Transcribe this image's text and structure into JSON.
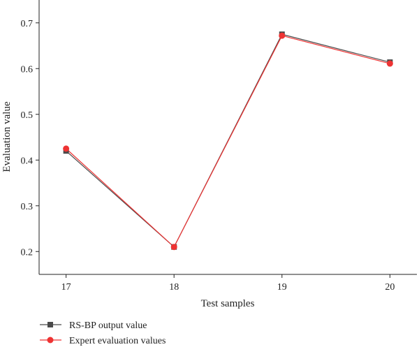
{
  "chart_data": {
    "type": "line",
    "title": "",
    "xlabel": "Test samples",
    "ylabel": "Evaluation value",
    "x": [
      17,
      18,
      19,
      20
    ],
    "xticks": [
      "17",
      "18",
      "19",
      "20"
    ],
    "xlim": [
      16.75,
      20.25
    ],
    "yticks": [
      "0.2",
      "0.3",
      "0.4",
      "0.5",
      "0.6",
      "0.7"
    ],
    "ylim": [
      0.15,
      0.75
    ],
    "grid": false,
    "legend": "bottom-left",
    "series": [
      {
        "name": "RS-BP output value",
        "values": [
          0.42,
          0.21,
          0.675,
          0.614
        ],
        "color": "#4a4a4a",
        "marker": "square"
      },
      {
        "name": "Expert evaluation values",
        "values": [
          0.425,
          0.21,
          0.672,
          0.611
        ],
        "color": "#ee3333",
        "marker": "circle"
      }
    ]
  }
}
